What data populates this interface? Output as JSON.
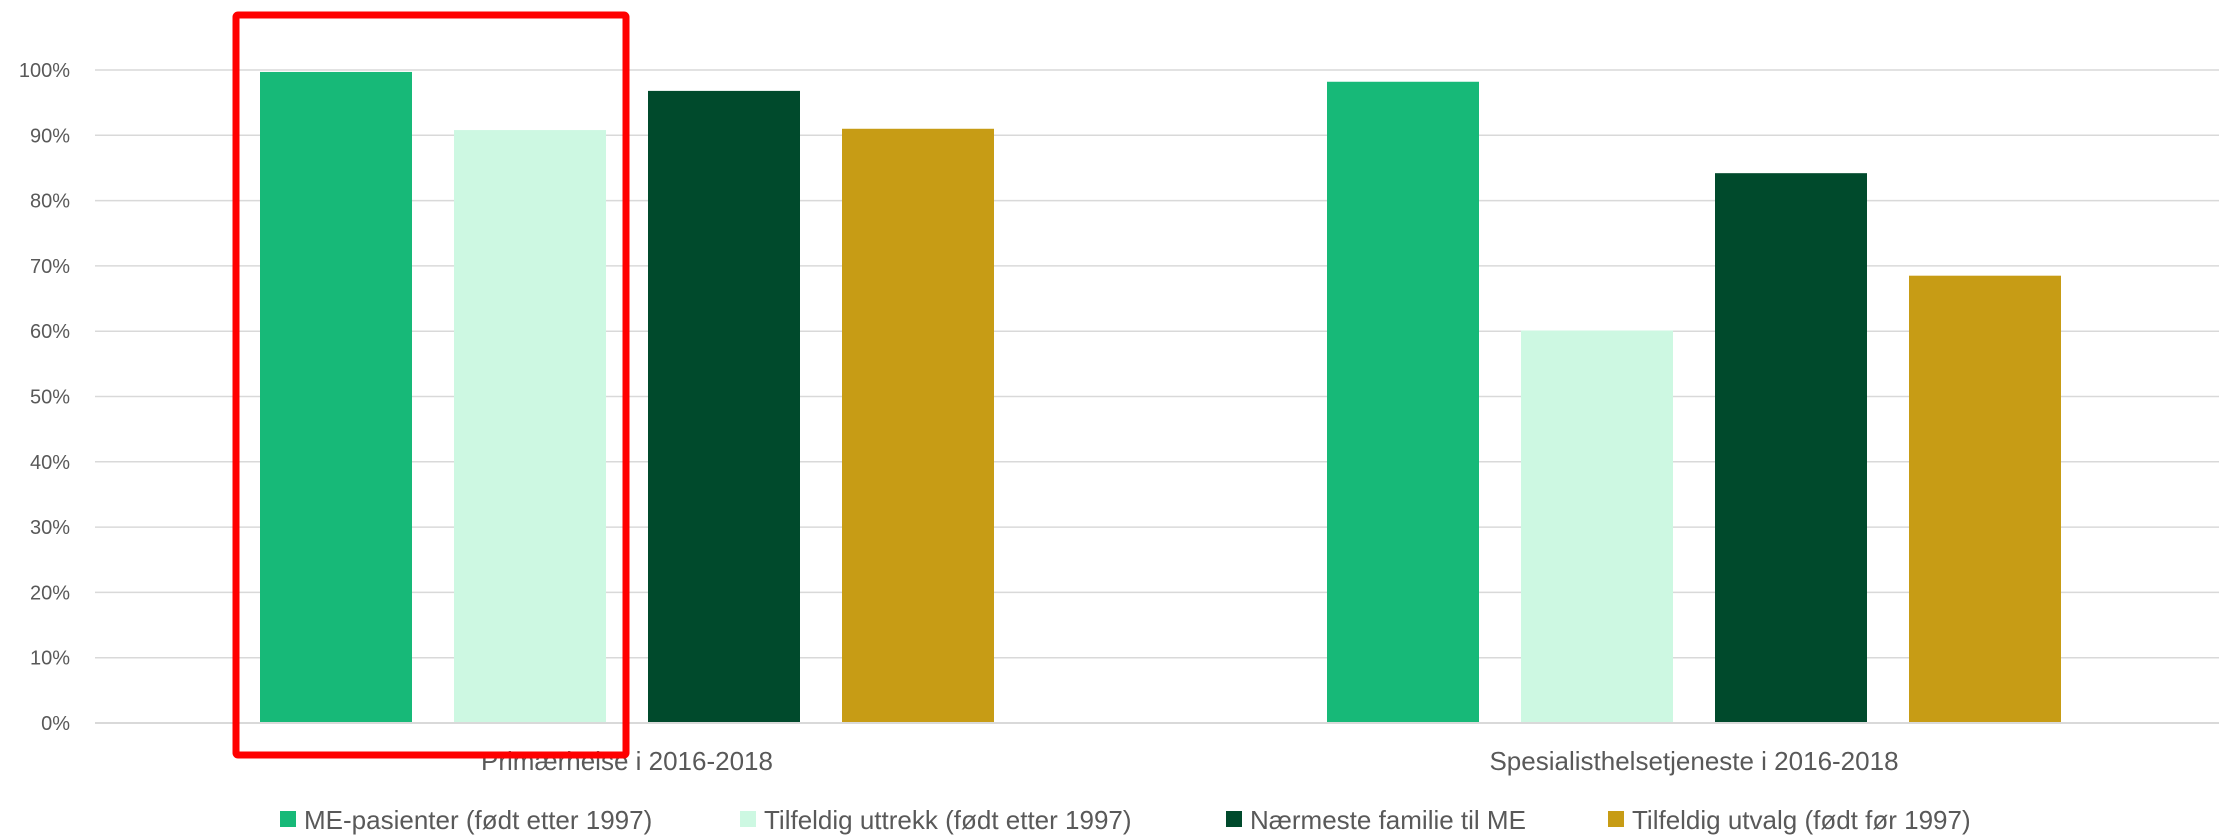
{
  "chart_data": {
    "type": "bar",
    "title": "",
    "xlabel": "",
    "ylabel": "",
    "ylim": [
      0,
      100
    ],
    "yticks": [
      "0%",
      "10%",
      "20%",
      "30%",
      "40%",
      "50%",
      "60%",
      "70%",
      "80%",
      "90%",
      "100%"
    ],
    "grid": true,
    "legend_position": "bottom",
    "categories": [
      "Primærhelse i 2016-2018",
      "Spesialisthelsetjeneste i 2016-2018"
    ],
    "series": [
      {
        "name": "ME-pasienter (født etter 1997)",
        "color": "#17b978",
        "values": [
          99.7,
          98.2
        ]
      },
      {
        "name": "Tilfeldig uttrekk (født etter 1997)",
        "color": "#cdf8e2",
        "values": [
          90.8,
          60.1
        ]
      },
      {
        "name": "Nærmeste familie til ME",
        "color": "#004a2c",
        "values": [
          96.8,
          84.2
        ]
      },
      {
        "name": "Tilfeldig utvalg (født før 1997)",
        "color": "#c79c15",
        "values": [
          91.0,
          68.5
        ]
      }
    ],
    "annotations": [
      {
        "type": "highlight-box",
        "color": "#ff0000",
        "covers": "Primærhelse i 2016-2018: ME-pasienter (født etter 1997), Tilfeldig uttrekk (født etter 1997)"
      }
    ]
  }
}
